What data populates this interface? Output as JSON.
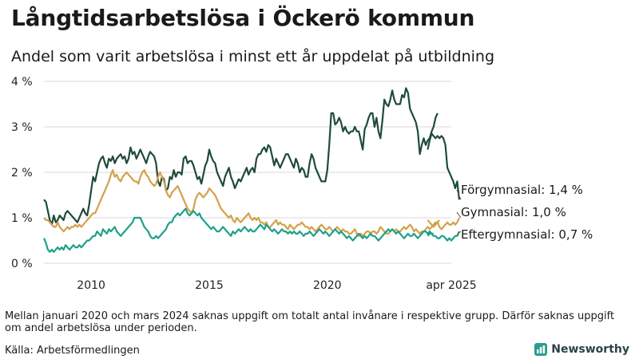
{
  "title": "Långtidsarbetslösa i Öckerö kommun",
  "subtitle": "Andel som varit arbetslösa i minst ett år uppdelat på utbildning",
  "note": "Mellan januari 2020 och mars 2024 saknas uppgift om totalt antal invånare i respektive grupp. Därför saknas uppgift om andel arbetslösa under perioden.",
  "source": "Källa: Arbetsförmedlingen",
  "brand": "Newsworthy",
  "brand_icon": "newsworthy-logo-icon",
  "chart_data": {
    "type": "line",
    "title": "Långtidsarbetslösa i Öckerö kommun",
    "subtitle": "Andel som varit arbetslösa i minst ett år uppdelat på utbildning",
    "ylim": [
      0,
      4
    ],
    "y_ticks": [
      0,
      1,
      2,
      3,
      4
    ],
    "y_tick_labels": [
      "0 %",
      "1 %",
      "2 %",
      "3 %",
      "4 %"
    ],
    "xlim": [
      "2008-01",
      "2025-04"
    ],
    "x_ticks": [
      "2010-01",
      "2015-01",
      "2020-01",
      "2025-04"
    ],
    "x_tick_labels": [
      "2010",
      "2015",
      "2020",
      "apr 2025"
    ],
    "grid": true,
    "legend": "end-labels",
    "series": [
      {
        "name": "Förgymnasial",
        "end_label": "Förgymnasial: 1,4 %",
        "color": "#1f4a3c",
        "segments": [
          {
            "start": "2008-01",
            "values": [
              1.4,
              1.35,
              1.15,
              0.95,
              0.85,
              1.05,
              0.9,
              0.95,
              1.05,
              1.0,
              0.95,
              1.1,
              1.15,
              1.1,
              1.05,
              1.0,
              0.95,
              0.9,
              1.0,
              1.1,
              1.2,
              1.1,
              1.05,
              1.3,
              1.6,
              1.9,
              1.8,
              2.0,
              2.2,
              2.3,
              2.35,
              2.2,
              2.1,
              2.3,
              2.25,
              2.35,
              2.2,
              2.3,
              2.35,
              2.4,
              2.3,
              2.35,
              2.2,
              2.3,
              2.55,
              2.4,
              2.45,
              2.3,
              2.4,
              2.5,
              2.4,
              2.3,
              2.2,
              2.35,
              2.45,
              2.4,
              2.35,
              2.2,
              1.8,
              1.7,
              1.9,
              1.85,
              1.6,
              1.65,
              1.9,
              1.85,
              2.05,
              1.9,
              2.0,
              2.0,
              1.95,
              2.3,
              2.35,
              2.2,
              2.25,
              2.25,
              2.15,
              2.0,
              1.85,
              1.9,
              1.75,
              1.95,
              2.15,
              2.25,
              2.5,
              2.35,
              2.25,
              2.2,
              2.0,
              1.9,
              1.8,
              1.7,
              1.9,
              2.0,
              2.1,
              1.9,
              1.8,
              1.65,
              1.75,
              1.85,
              1.8,
              1.9,
              2.0,
              2.1,
              1.95,
              2.05,
              2.1,
              2.0,
              2.3,
              2.4,
              2.4,
              2.5,
              2.55,
              2.45,
              2.6,
              2.55,
              2.35,
              2.15,
              2.3,
              2.2,
              2.1,
              2.2,
              2.3,
              2.4,
              2.4,
              2.3,
              2.2,
              2.1,
              2.3,
              2.2,
              2.0,
              2.1,
              2.05,
              1.9,
              1.9,
              2.2,
              2.4,
              2.3,
              2.1,
              2.0,
              1.9,
              1.8,
              1.8,
              1.8,
              2.05,
              2.6,
              3.3,
              3.3,
              3.05,
              3.1,
              3.2,
              3.1,
              2.9,
              3.0,
              2.9,
              2.85,
              2.9,
              2.9,
              3.0,
              2.9,
              2.9,
              2.7,
              2.5,
              2.95,
              3.05,
              3.2,
              3.3,
              3.3,
              3.0,
              3.2,
              2.9,
              2.75,
              3.15,
              3.6,
              3.5,
              3.45,
              3.6,
              3.8,
              3.6,
              3.5,
              3.5,
              3.5,
              3.7,
              3.65,
              3.85,
              3.75,
              3.4,
              3.3,
              3.2,
              3.1,
              2.9,
              2.4,
              2.6,
              2.75,
              2.6,
              2.7,
              2.75,
              2.9,
              3.0,
              3.2,
              3.3
            ]
          },
          {
            "start": "2024-04",
            "values": [
              2.5,
              2.7,
              2.85,
              2.8,
              2.75,
              2.8,
              2.75,
              2.8,
              2.75,
              2.6,
              2.1,
              2.0,
              1.9,
              1.8,
              1.65,
              1.8,
              1.4
            ]
          }
        ]
      },
      {
        "name": "Gymnasial",
        "end_label": "Gymnasial: 1,0 %",
        "color": "#d4a14a",
        "segments": [
          {
            "start": "2008-01",
            "values": [
              1.0,
              0.95,
              0.95,
              0.9,
              0.85,
              0.8,
              0.8,
              0.9,
              0.8,
              0.75,
              0.7,
              0.75,
              0.8,
              0.75,
              0.8,
              0.8,
              0.85,
              0.8,
              0.85,
              0.8,
              0.85,
              0.9,
              0.95,
              1.0,
              1.05,
              1.1,
              1.1,
              1.2,
              1.3,
              1.4,
              1.5,
              1.6,
              1.7,
              1.8,
              1.95,
              2.05,
              1.9,
              1.95,
              1.85,
              1.8,
              1.9,
              1.95,
              2.0,
              1.95,
              1.9,
              1.85,
              1.8,
              1.8,
              1.75,
              1.9,
              2.0,
              2.05,
              1.95,
              1.9,
              1.8,
              1.75,
              1.7,
              1.75,
              1.9,
              2.0,
              1.9,
              1.8,
              1.6,
              1.5,
              1.45,
              1.55,
              1.6,
              1.65,
              1.7,
              1.6,
              1.5,
              1.4,
              1.3,
              1.2,
              1.15,
              1.1,
              1.2,
              1.4,
              1.5,
              1.55,
              1.5,
              1.45,
              1.5,
              1.55,
              1.65,
              1.6,
              1.55,
              1.5,
              1.4,
              1.3,
              1.2,
              1.15,
              1.1,
              1.05,
              1.0,
              1.05,
              0.95,
              0.9,
              1.0,
              0.95,
              0.9,
              0.95,
              1.0,
              1.05,
              1.1,
              1.0,
              0.95,
              1.0,
              0.95,
              1.0,
              0.9,
              0.9,
              0.85,
              0.9,
              0.8,
              0.8,
              0.85,
              0.9,
              0.95,
              0.85,
              0.9,
              0.85,
              0.85,
              0.8,
              0.75,
              0.85,
              0.8,
              0.75,
              0.8,
              0.85,
              0.85,
              0.9,
              0.85,
              0.8,
              0.8,
              0.75,
              0.8,
              0.75,
              0.7,
              0.75,
              0.8,
              0.85,
              0.8,
              0.75,
              0.75,
              0.8,
              0.75,
              0.7,
              0.75,
              0.8,
              0.75,
              0.7,
              0.75,
              0.7,
              0.7,
              0.65,
              0.65,
              0.7,
              0.75,
              0.65,
              0.6,
              0.65,
              0.6,
              0.65,
              0.7,
              0.7,
              0.65,
              0.7,
              0.7,
              0.65,
              0.7,
              0.8,
              0.75,
              0.7,
              0.65,
              0.65,
              0.7,
              0.75,
              0.7,
              0.75,
              0.7,
              0.7,
              0.75,
              0.8,
              0.75,
              0.8,
              0.85,
              0.8,
              0.7,
              0.75,
              0.7,
              0.65,
              0.7,
              0.7,
              0.75,
              0.8,
              0.75,
              0.8,
              0.85,
              0.9,
              0.9,
              0.95
            ]
          },
          {
            "start": "2024-04",
            "values": [
              0.95,
              0.9,
              0.85,
              0.8,
              0.85,
              0.9,
              0.8,
              0.75,
              0.8,
              0.85,
              0.9,
              0.85,
              0.85,
              0.9,
              0.85,
              0.9,
              1.0
            ]
          }
        ]
      },
      {
        "name": "Eftergymnasial",
        "end_label": "Eftergymnasial: 0,7 %",
        "color": "#1fa08a",
        "segments": [
          {
            "start": "2008-01",
            "values": [
              0.55,
              0.45,
              0.3,
              0.25,
              0.3,
              0.25,
              0.3,
              0.35,
              0.3,
              0.35,
              0.3,
              0.4,
              0.35,
              0.3,
              0.35,
              0.4,
              0.35,
              0.35,
              0.4,
              0.35,
              0.4,
              0.45,
              0.5,
              0.5,
              0.55,
              0.6,
              0.6,
              0.7,
              0.65,
              0.6,
              0.75,
              0.7,
              0.65,
              0.75,
              0.7,
              0.75,
              0.8,
              0.7,
              0.65,
              0.6,
              0.65,
              0.7,
              0.75,
              0.8,
              0.85,
              0.9,
              1.0,
              1.0,
              1.0,
              1.0,
              0.9,
              0.8,
              0.75,
              0.7,
              0.6,
              0.55,
              0.55,
              0.6,
              0.55,
              0.6,
              0.65,
              0.7,
              0.75,
              0.85,
              0.9,
              0.9,
              1.0,
              1.05,
              1.1,
              1.05,
              1.1,
              1.15,
              1.2,
              1.1,
              1.05,
              1.1,
              1.15,
              1.1,
              1.05,
              1.1,
              1.0,
              0.95,
              0.9,
              0.85,
              0.8,
              0.75,
              0.8,
              0.75,
              0.7,
              0.7,
              0.75,
              0.8,
              0.75,
              0.7,
              0.65,
              0.6,
              0.7,
              0.65,
              0.7,
              0.75,
              0.7,
              0.75,
              0.8,
              0.75,
              0.7,
              0.75,
              0.7,
              0.7,
              0.75,
              0.8,
              0.85,
              0.8,
              0.75,
              0.85,
              0.8,
              0.75,
              0.7,
              0.75,
              0.7,
              0.65,
              0.7,
              0.75,
              0.7,
              0.7,
              0.65,
              0.7,
              0.65,
              0.7,
              0.65,
              0.65,
              0.7,
              0.65,
              0.6,
              0.65,
              0.65,
              0.7,
              0.65,
              0.6,
              0.65,
              0.7,
              0.75,
              0.7,
              0.65,
              0.7,
              0.65,
              0.6,
              0.65,
              0.7,
              0.75,
              0.7,
              0.65,
              0.7,
              0.65,
              0.6,
              0.55,
              0.6,
              0.55,
              0.5,
              0.55,
              0.6,
              0.65,
              0.6,
              0.55,
              0.6,
              0.55,
              0.6,
              0.65,
              0.6,
              0.6,
              0.55,
              0.5,
              0.55,
              0.6,
              0.65,
              0.7,
              0.75,
              0.7,
              0.75,
              0.7,
              0.65,
              0.7,
              0.65,
              0.6,
              0.55,
              0.6,
              0.65,
              0.6,
              0.6,
              0.65,
              0.6,
              0.55,
              0.6,
              0.65,
              0.7,
              0.7,
              0.65,
              0.7,
              0.65,
              0.65
            ]
          },
          {
            "start": "2024-04",
            "values": [
              0.6,
              0.65,
              0.65,
              0.6,
              0.6,
              0.55,
              0.55,
              0.6,
              0.6,
              0.55,
              0.5,
              0.55,
              0.5,
              0.55,
              0.6,
              0.6,
              0.7
            ]
          }
        ]
      }
    ]
  }
}
